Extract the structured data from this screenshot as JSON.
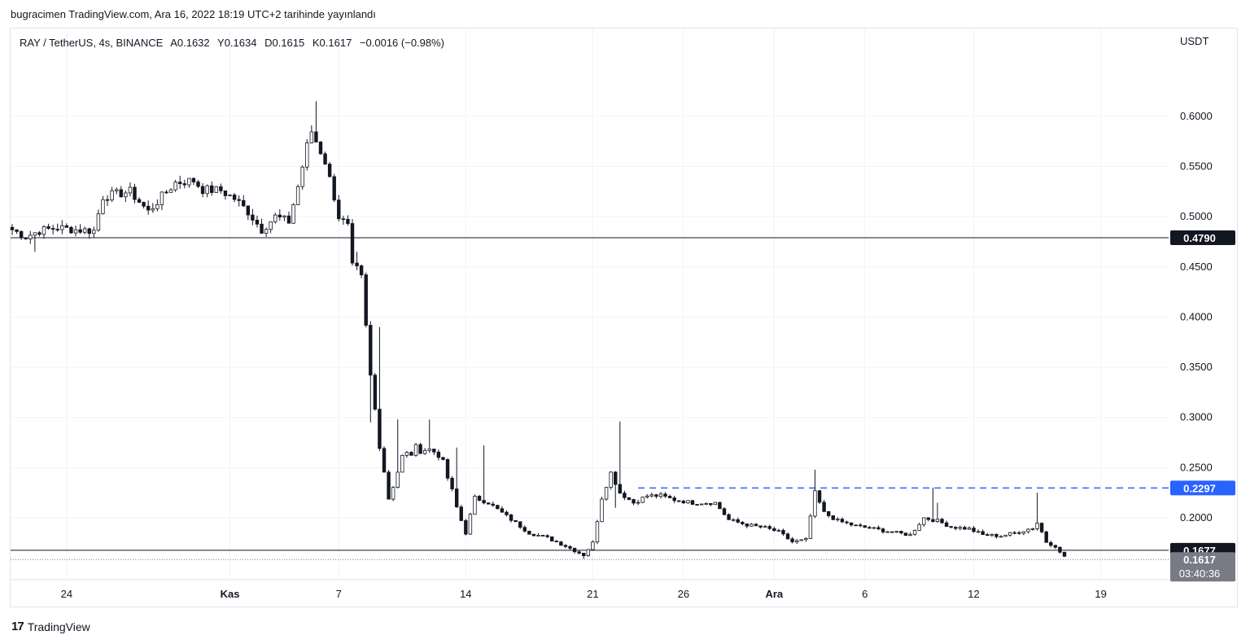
{
  "publisher_line": "bugracimen TradingView.com, Ara 16, 2022 18:19 UTC+2 tarihinde yayınlandı",
  "legend": {
    "symbol": "RAY / TetherUS, 4s, BINANCE",
    "open": "A0.1632",
    "high": "Y0.1634",
    "low": "D0.1615",
    "close": "K0.1617",
    "change": "−0.0016 (−0.98%)"
  },
  "footer": {
    "logo_mark": "17",
    "brand": "TradingView"
  },
  "colors": {
    "candle": "#131722",
    "dashed_line": "#2962ff",
    "grid": "#f0f3fa",
    "axis_text": "#131722"
  },
  "chart_data": {
    "type": "candlestick",
    "currency_label": "USDT",
    "y_ticks": [
      "0.6000",
      "0.5500",
      "0.5000",
      "0.4500",
      "0.4000",
      "0.3500",
      "0.3000",
      "0.2500",
      "0.2000"
    ],
    "ylim": [
      0.14,
      0.655
    ],
    "x_ticks": [
      {
        "label": "24",
        "bold": false,
        "i": 12
      },
      {
        "label": "Kas",
        "bold": true,
        "i": 48
      },
      {
        "label": "7",
        "bold": false,
        "i": 72
      },
      {
        "label": "14",
        "bold": false,
        "i": 100
      },
      {
        "label": "21",
        "bold": false,
        "i": 128
      },
      {
        "label": "26",
        "bold": false,
        "i": 148
      },
      {
        "label": "Ara",
        "bold": true,
        "i": 168
      },
      {
        "label": "6",
        "bold": false,
        "i": 188
      },
      {
        "label": "12",
        "bold": false,
        "i": 212
      },
      {
        "label": "19",
        "bold": false,
        "i": 240
      }
    ],
    "horizontal_lines": [
      {
        "value": 0.479,
        "label": "0.4790",
        "style": "solid",
        "color": "#131722",
        "badge_bg": "#131722"
      },
      {
        "value": 0.2297,
        "label": "0.2297",
        "style": "dashed",
        "color": "#2962ff",
        "badge_bg": "#2962ff",
        "from_i": 138
      },
      {
        "value": 0.1677,
        "label": "0.1677",
        "style": "solid",
        "color": "#131722",
        "badge_bg": "#131722"
      }
    ],
    "last_price": {
      "value": 0.1617,
      "label": "0.1617",
      "countdown": "03:40:36"
    },
    "anchors": [
      [
        0,
        0.487
      ],
      [
        3,
        0.48
      ],
      [
        6,
        0.486
      ],
      [
        10,
        0.489
      ],
      [
        14,
        0.487
      ],
      [
        18,
        0.486
      ],
      [
        20,
        0.52
      ],
      [
        26,
        0.525
      ],
      [
        30,
        0.505
      ],
      [
        33,
        0.52
      ],
      [
        36,
        0.534
      ],
      [
        40,
        0.536
      ],
      [
        42,
        0.527
      ],
      [
        46,
        0.526
      ],
      [
        49,
        0.518
      ],
      [
        52,
        0.505
      ],
      [
        55,
        0.487
      ],
      [
        58,
        0.5
      ],
      [
        61,
        0.495
      ],
      [
        63,
        0.53
      ],
      [
        65,
        0.57
      ],
      [
        66,
        0.585
      ],
      [
        67,
        0.575
      ],
      [
        69,
        0.555
      ],
      [
        71,
        0.52
      ],
      [
        72,
        0.5
      ],
      [
        74,
        0.49
      ],
      [
        75,
        0.45
      ],
      [
        77,
        0.435
      ],
      [
        79,
        0.34
      ],
      [
        81,
        0.275
      ],
      [
        83,
        0.22
      ],
      [
        86,
        0.26
      ],
      [
        90,
        0.27
      ],
      [
        94,
        0.265
      ],
      [
        96,
        0.24
      ],
      [
        98,
        0.21
      ],
      [
        100,
        0.185
      ],
      [
        102,
        0.22
      ],
      [
        105,
        0.215
      ],
      [
        108,
        0.205
      ],
      [
        111,
        0.195
      ],
      [
        114,
        0.185
      ],
      [
        118,
        0.18
      ],
      [
        122,
        0.172
      ],
      [
        126,
        0.163
      ],
      [
        128,
        0.175
      ],
      [
        130,
        0.22
      ],
      [
        132,
        0.245
      ],
      [
        134,
        0.225
      ],
      [
        137,
        0.215
      ],
      [
        140,
        0.222
      ],
      [
        143,
        0.222
      ],
      [
        146,
        0.218
      ],
      [
        150,
        0.215
      ],
      [
        155,
        0.215
      ],
      [
        158,
        0.198
      ],
      [
        162,
        0.193
      ],
      [
        166,
        0.19
      ],
      [
        169,
        0.186
      ],
      [
        172,
        0.176
      ],
      [
        175,
        0.178
      ],
      [
        177,
        0.225
      ],
      [
        179,
        0.205
      ],
      [
        182,
        0.197
      ],
      [
        186,
        0.192
      ],
      [
        190,
        0.189
      ],
      [
        195,
        0.185
      ],
      [
        198,
        0.183
      ],
      [
        201,
        0.2
      ],
      [
        204,
        0.197
      ],
      [
        207,
        0.191
      ],
      [
        211,
        0.189
      ],
      [
        214,
        0.183
      ],
      [
        218,
        0.182
      ],
      [
        222,
        0.186
      ],
      [
        225,
        0.19
      ],
      [
        226,
        0.195
      ],
      [
        227,
        0.186
      ],
      [
        228,
        0.176
      ],
      [
        230,
        0.172
      ],
      [
        231,
        0.165
      ],
      [
        232,
        0.1617
      ]
    ],
    "spikes": [
      {
        "i": 67,
        "high": 0.615
      },
      {
        "i": 79,
        "low": 0.295
      },
      {
        "i": 81,
        "high": 0.39
      },
      {
        "i": 85,
        "high": 0.298
      },
      {
        "i": 92,
        "high": 0.298
      },
      {
        "i": 98,
        "high": 0.27
      },
      {
        "i": 104,
        "high": 0.272
      },
      {
        "i": 134,
        "high": 0.296
      },
      {
        "i": 133,
        "low": 0.21
      },
      {
        "i": 177,
        "high": 0.248
      },
      {
        "i": 203,
        "high": 0.23
      },
      {
        "i": 204,
        "high": 0.215
      },
      {
        "i": 226,
        "high": 0.225
      },
      {
        "i": 5,
        "low": 0.465
      },
      {
        "i": 76,
        "high": 0.465
      },
      {
        "i": 126,
        "low": 0.159
      }
    ]
  }
}
